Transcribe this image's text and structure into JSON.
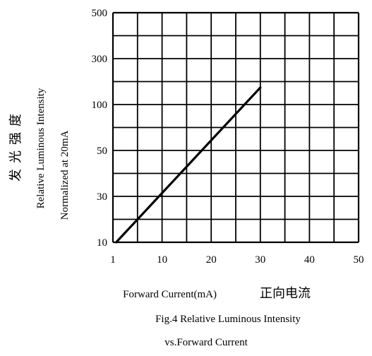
{
  "chart_data": {
    "type": "line",
    "title": "Fig.4 Relative Luminous Intensity",
    "subtitle": "vs.Forward Current",
    "xlabel": "Forward Current(mA)",
    "xlabel_cn": "正向电流",
    "ylabel": "Relative Luminous Intensity",
    "ylabel_cn": "发光强度",
    "ylabel2": "Normalized at 20mA",
    "x_ticks": [
      "1",
      "10",
      "20",
      "30",
      "40",
      "50"
    ],
    "y_ticks": [
      "500",
      "300",
      "100",
      "50",
      "30",
      "10"
    ],
    "x_grid_count": 10,
    "y_grid_count": 10,
    "grid": true,
    "series": [
      {
        "x": [
          1.6,
          30
        ],
        "y": [
          10,
          150
        ]
      }
    ],
    "line_color": "#000000"
  }
}
